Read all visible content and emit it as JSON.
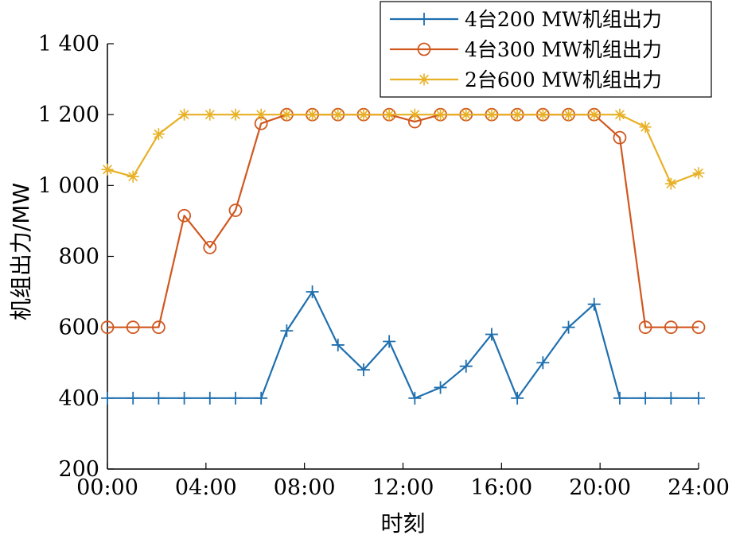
{
  "chart_data": {
    "type": "line",
    "xlabel": "时刻",
    "ylabel": "机组出力/MW",
    "x_ticks": [
      "00:00",
      "04:00",
      "08:00",
      "12:00",
      "16:00",
      "20:00",
      "24:00"
    ],
    "y_ticks": [
      "200",
      "400",
      "600",
      "800",
      "1 000",
      "1 200",
      "1 400"
    ],
    "xlim_hours": [
      0,
      24
    ],
    "ylim": [
      200,
      1400
    ],
    "grid": false,
    "legend_position": "top-right",
    "x_hours": [
      0.0,
      1.04,
      2.08,
      3.12,
      4.16,
      5.2,
      6.24,
      7.28,
      8.32,
      9.36,
      10.4,
      11.44,
      12.48,
      13.52,
      14.56,
      15.6,
      16.64,
      17.68,
      18.72,
      19.76,
      20.8,
      21.84,
      22.88,
      24.0
    ],
    "series": [
      {
        "name": "4台200 MW机组出力",
        "color": "#1f6fae",
        "marker": "plus",
        "values": [
          400,
          400,
          400,
          400,
          400,
          400,
          400,
          590,
          700,
          550,
          480,
          560,
          400,
          430,
          490,
          580,
          400,
          500,
          600,
          665,
          400,
          400,
          400,
          400
        ]
      },
      {
        "name": "4台300 MW机组出力",
        "color": "#d0581f",
        "marker": "circle",
        "values": [
          600,
          600,
          600,
          915,
          825,
          930,
          1175,
          1200,
          1200,
          1200,
          1200,
          1200,
          1180,
          1200,
          1200,
          1200,
          1200,
          1200,
          1200,
          1200,
          1135,
          600,
          600,
          600
        ]
      },
      {
        "name": "2台600 MW机组出力",
        "color": "#e8b024",
        "marker": "asterisk",
        "values": [
          1045,
          1025,
          1145,
          1200,
          1200,
          1200,
          1200,
          1200,
          1200,
          1200,
          1200,
          1200,
          1200,
          1200,
          1200,
          1200,
          1200,
          1200,
          1200,
          1200,
          1200,
          1165,
          1005,
          1035
        ]
      }
    ]
  }
}
